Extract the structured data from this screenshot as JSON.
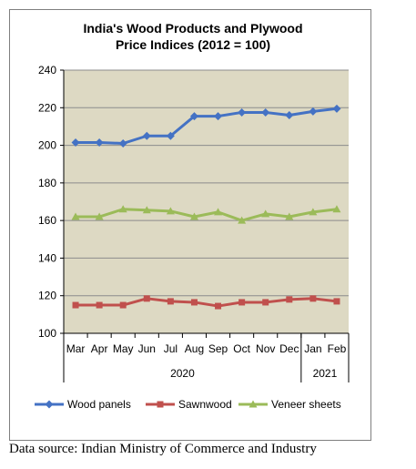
{
  "chart_data": {
    "type": "line",
    "title_line1": "India's Wood Products and Plywood",
    "title_line2": "Price Indices (2012 = 100)",
    "categories": [
      "Mar",
      "Apr",
      "May",
      "Jun",
      "Jul",
      "Aug",
      "Sep",
      "Oct",
      "Nov",
      "Dec",
      "Jan",
      "Feb"
    ],
    "year_groups": [
      {
        "label": "2020",
        "start": 0,
        "end": 9
      },
      {
        "label": "2021",
        "start": 10,
        "end": 11
      }
    ],
    "ylim": [
      100,
      240
    ],
    "yticks": [
      100,
      120,
      140,
      160,
      180,
      200,
      220,
      240
    ],
    "grid": true,
    "legend_position": "bottom",
    "series": [
      {
        "name": "Wood panels",
        "color": "#4472C4",
        "marker": "diamond",
        "values": [
          201.5,
          201.5,
          201,
          205,
          205,
          215.5,
          215.5,
          217.5,
          217.5,
          216,
          218,
          219.5
        ]
      },
      {
        "name": "Sawnwood",
        "color": "#C0504D",
        "marker": "square",
        "values": [
          115,
          115,
          115,
          118.5,
          117,
          116.5,
          114.5,
          116.5,
          116.5,
          118,
          118.5,
          117
        ]
      },
      {
        "name": "Veneer sheets",
        "color": "#9BBB59",
        "marker": "triangle",
        "values": [
          162,
          162,
          166,
          165.5,
          165,
          162,
          164.5,
          160,
          163.5,
          162,
          164.5,
          166
        ]
      }
    ]
  },
  "colors": {
    "plot_background": "#DDD9C3",
    "gridline": "#8C8C8C",
    "frame": "#7F7F7F"
  },
  "footer": {
    "source": "Data source: Indian Ministry of Commerce and Industry"
  }
}
